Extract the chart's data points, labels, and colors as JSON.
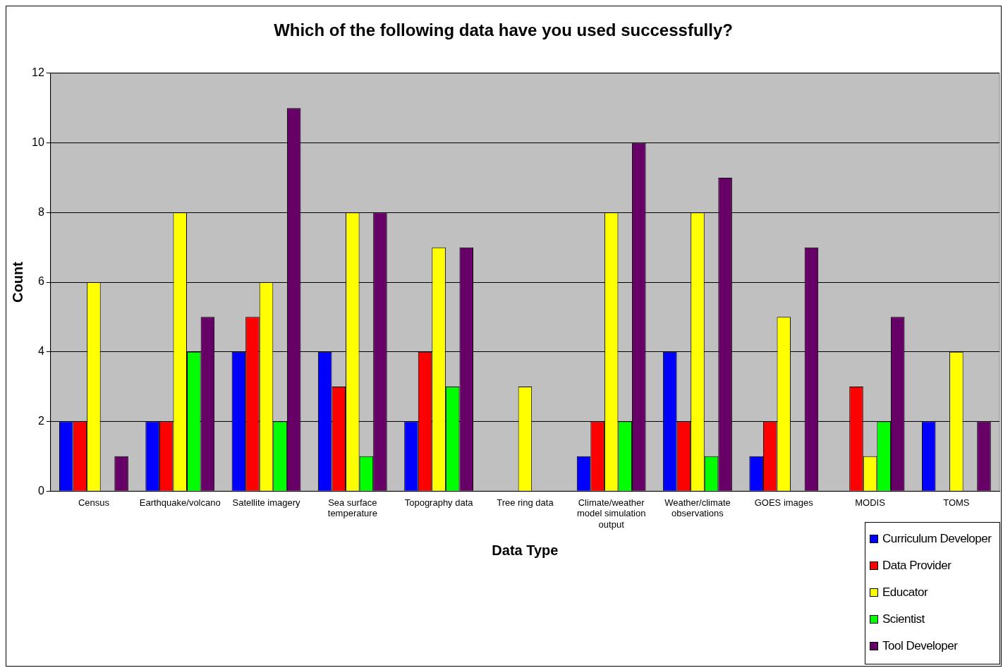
{
  "chart_data": {
    "type": "bar",
    "title": "Which of the following data have you used successfully?",
    "xlabel": "Data Type",
    "ylabel": "Count",
    "categories": [
      "Census",
      "Earthquake/volcano",
      "Satellite imagery",
      "Sea surface temperature",
      "Topography data",
      "Tree ring data",
      "Climate/weather model simulation output",
      "Weather/climate observations",
      "GOES images",
      "MODIS",
      "TOMS"
    ],
    "series": [
      {
        "name": "Curriculum Developer",
        "color": "#0000ff",
        "values": [
          2,
          2,
          4,
          4,
          2,
          0,
          1,
          4,
          1,
          0,
          2
        ]
      },
      {
        "name": "Data Provider",
        "color": "#ff0000",
        "values": [
          2,
          2,
          5,
          3,
          4,
          0,
          2,
          2,
          2,
          3,
          0
        ]
      },
      {
        "name": "Educator",
        "color": "#ffff00",
        "values": [
          6,
          8,
          6,
          8,
          7,
          3,
          8,
          8,
          5,
          1,
          4
        ]
      },
      {
        "name": "Scientist",
        "color": "#00ff00",
        "values": [
          0,
          4,
          2,
          1,
          3,
          0,
          2,
          1,
          0,
          2,
          0
        ]
      },
      {
        "name": "Tool Developer",
        "color": "#660066",
        "values": [
          1,
          5,
          11,
          8,
          7,
          0,
          10,
          9,
          7,
          5,
          2
        ]
      }
    ],
    "ylim": [
      0,
      12
    ],
    "yticks": [
      0,
      2,
      4,
      6,
      8,
      10,
      12
    ],
    "grid": "y",
    "legend": "bottom right"
  }
}
